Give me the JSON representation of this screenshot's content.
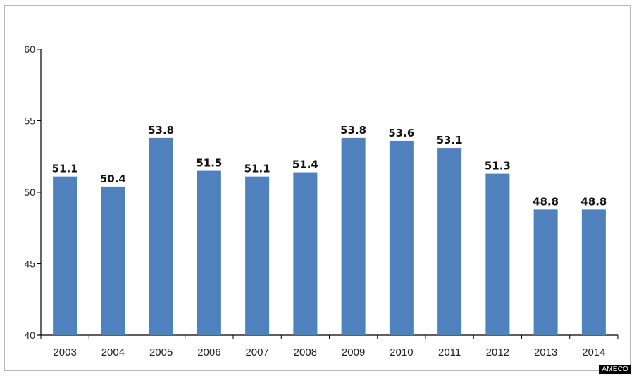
{
  "chart_data": {
    "type": "bar",
    "categories": [
      "2003",
      "2004",
      "2005",
      "2006",
      "2007",
      "2008",
      "2009",
      "2010",
      "2011",
      "2012",
      "2013",
      "2014"
    ],
    "values": [
      51.1,
      50.4,
      53.8,
      51.5,
      51.1,
      51.4,
      53.8,
      53.6,
      53.1,
      51.3,
      48.8,
      48.8
    ],
    "data_labels": [
      "51.1",
      "50.4",
      "53.8",
      "51.5",
      "51.1",
      "51.4",
      "53.8",
      "53.6",
      "53.1",
      "51.3",
      "48.8",
      "48.8"
    ],
    "yticks": [
      "40",
      "45",
      "50",
      "55",
      "60"
    ],
    "ylim": [
      40,
      60
    ],
    "grid": false,
    "legend": "none",
    "bar_color": "#4f81bd",
    "title": "",
    "xlabel": "",
    "ylabel": ""
  },
  "source": "AMECO"
}
